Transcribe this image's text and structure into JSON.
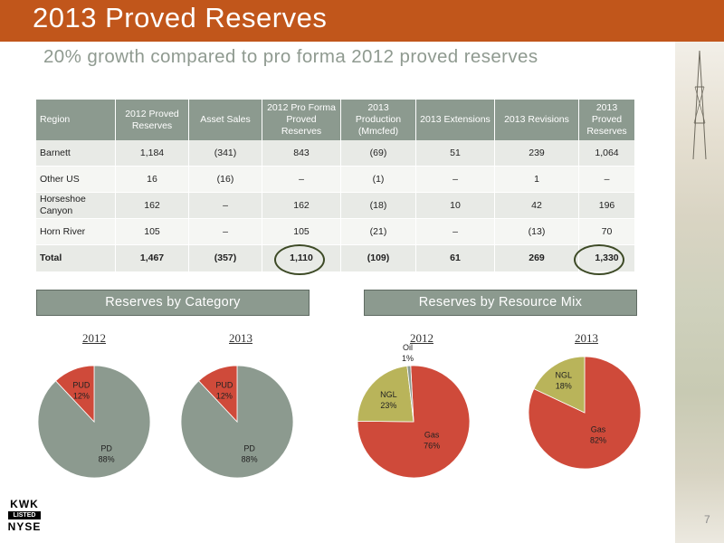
{
  "title": "2013 Proved Reserves",
  "subtitle": "20% growth compared to pro forma 2012 proved reserves",
  "table": {
    "headers": [
      "Region",
      "2012 Proved Reserves",
      "Asset Sales",
      "2012 Pro Forma Proved Reserves",
      "2013 Production (Mmcfed)",
      "2013 Extensions",
      "2013 Revisions",
      "2013 Proved Reserves"
    ],
    "rows": [
      [
        "Barnett",
        "1,184",
        "(341)",
        "843",
        "(69)",
        "51",
        "239",
        "1,064"
      ],
      [
        "Other US",
        "16",
        "(16)",
        "–",
        "(1)",
        "–",
        "1",
        "–"
      ],
      [
        "Horseshoe Canyon",
        "162",
        "–",
        "162",
        "(18)",
        "10",
        "42",
        "196"
      ],
      [
        "Horn River",
        "105",
        "–",
        "105",
        "(21)",
        "–",
        "(13)",
        "70"
      ],
      [
        "Total",
        "1,467",
        "(357)",
        "1,110",
        "(109)",
        "61",
        "269",
        "1,330"
      ]
    ]
  },
  "sections": {
    "category_label": "Reserves by Category",
    "resource_label": "Reserves by Resource Mix"
  },
  "chart_data": [
    {
      "type": "pie",
      "title": "2012",
      "categories": [
        "PD",
        "PUD"
      ],
      "values": [
        88,
        12
      ],
      "value_labels": [
        "88%",
        "12%"
      ],
      "colors": [
        "#8c9a8f",
        "#cf4a3a"
      ]
    },
    {
      "type": "pie",
      "title": "2013",
      "categories": [
        "PD",
        "PUD"
      ],
      "values": [
        88,
        12
      ],
      "value_labels": [
        "88%",
        "12%"
      ],
      "colors": [
        "#8c9a8f",
        "#cf4a3a"
      ]
    },
    {
      "type": "pie",
      "title": "2012",
      "categories": [
        "Gas",
        "NGL",
        "Oil"
      ],
      "values": [
        76,
        23,
        1
      ],
      "value_labels": [
        "76%",
        "23%",
        "1%"
      ],
      "colors": [
        "#cf4a3a",
        "#b9b45a",
        "#8c9a8f"
      ]
    },
    {
      "type": "pie",
      "title": "2013",
      "categories": [
        "Gas",
        "NGL"
      ],
      "values": [
        82,
        18
      ],
      "value_labels": [
        "82%",
        "18%"
      ],
      "colors": [
        "#cf4a3a",
        "#b9b45a"
      ]
    }
  ],
  "logo": {
    "line1": "KWK",
    "line2": "LISTED",
    "line3": "NYSE"
  },
  "page_number": "7",
  "colors": {
    "accent": "#c1561b",
    "header_gray": "#8c9a8f",
    "gas_red": "#cf4a3a",
    "ngl_olive": "#b9b45a"
  }
}
